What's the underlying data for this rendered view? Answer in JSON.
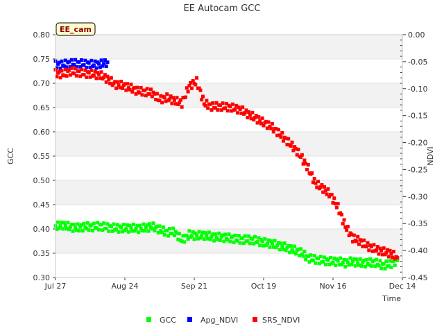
{
  "chart_data": {
    "type": "scatter",
    "title": "EE Autocam GCC",
    "badge": "EE_cam",
    "xlabel": "Time",
    "ylabel_left": "GCC",
    "ylabel_right": "NDVI",
    "x_range": [
      "2023-07-27",
      "2023-12-14"
    ],
    "ylim_left": [
      0.3,
      0.8
    ],
    "ylim_right": [
      -0.45,
      0.0
    ],
    "x_ticks": [
      {
        "date": "2023-07-27",
        "label": "Jul 27"
      },
      {
        "date": "2023-08-24",
        "label": "Aug 24"
      },
      {
        "date": "2023-09-21",
        "label": "Sep 21"
      },
      {
        "date": "2023-10-19",
        "label": "Oct 19"
      },
      {
        "date": "2023-11-16",
        "label": "Nov 16"
      },
      {
        "date": "2023-12-14",
        "label": "Dec 14"
      }
    ],
    "y_ticks_left": [
      "0.30",
      "0.35",
      "0.40",
      "0.45",
      "0.50",
      "0.55",
      "0.60",
      "0.65",
      "0.70",
      "0.75",
      "0.80"
    ],
    "y_ticks_right": [
      "-0.45",
      "-0.40",
      "-0.35",
      "-0.30",
      "-0.25",
      "-0.20",
      "-0.15",
      "-0.10",
      "-0.05",
      "0.00"
    ],
    "grid": "horizontal bands",
    "legend_position": "bottom",
    "series": [
      {
        "name": "GCC",
        "color": "#00ff00",
        "axis": "left",
        "points": [
          [
            "2023-07-27",
            0.405
          ],
          [
            "2023-07-30",
            0.408
          ],
          [
            "2023-08-02",
            0.404
          ],
          [
            "2023-08-05",
            0.402
          ],
          [
            "2023-08-08",
            0.405
          ],
          [
            "2023-08-11",
            0.404
          ],
          [
            "2023-08-14",
            0.406
          ],
          [
            "2023-08-17",
            0.403
          ],
          [
            "2023-08-20",
            0.402
          ],
          [
            "2023-08-23",
            0.401
          ],
          [
            "2023-08-26",
            0.402
          ],
          [
            "2023-08-29",
            0.401
          ],
          [
            "2023-09-01",
            0.402
          ],
          [
            "2023-09-04",
            0.405
          ],
          [
            "2023-09-07",
            0.399
          ],
          [
            "2023-09-10",
            0.393
          ],
          [
            "2023-09-13",
            0.394
          ],
          [
            "2023-09-16",
            0.377
          ],
          [
            "2023-09-19",
            0.388
          ],
          [
            "2023-09-22",
            0.386
          ],
          [
            "2023-09-25",
            0.387
          ],
          [
            "2023-09-28",
            0.384
          ],
          [
            "2023-10-01",
            0.383
          ],
          [
            "2023-10-04",
            0.382
          ],
          [
            "2023-10-07",
            0.38
          ],
          [
            "2023-10-10",
            0.378
          ],
          [
            "2023-10-13",
            0.378
          ],
          [
            "2023-10-16",
            0.376
          ],
          [
            "2023-10-19",
            0.372
          ],
          [
            "2023-10-22",
            0.37
          ],
          [
            "2023-10-25",
            0.366
          ],
          [
            "2023-10-28",
            0.362
          ],
          [
            "2023-10-31",
            0.357
          ],
          [
            "2023-11-03",
            0.352
          ],
          [
            "2023-11-06",
            0.34
          ],
          [
            "2023-11-09",
            0.337
          ],
          [
            "2023-11-12",
            0.335
          ],
          [
            "2023-11-15",
            0.333
          ],
          [
            "2023-11-18",
            0.333
          ],
          [
            "2023-11-21",
            0.33
          ],
          [
            "2023-11-24",
            0.333
          ],
          [
            "2023-11-27",
            0.33
          ],
          [
            "2023-11-30",
            0.33
          ],
          [
            "2023-12-03",
            0.331
          ],
          [
            "2023-12-06",
            0.325
          ],
          [
            "2023-12-09",
            0.327
          ],
          [
            "2023-12-12",
            0.335
          ]
        ]
      },
      {
        "name": "Apg_NDVI",
        "color": "#0000ff",
        "axis": "right",
        "points": [
          [
            "2023-07-27",
            -0.056
          ],
          [
            "2023-07-30",
            -0.055
          ],
          [
            "2023-08-02",
            -0.053
          ],
          [
            "2023-08-05",
            -0.053
          ],
          [
            "2023-08-08",
            -0.054
          ],
          [
            "2023-08-11",
            -0.055
          ],
          [
            "2023-08-14",
            -0.055
          ],
          [
            "2023-08-17",
            -0.051
          ]
        ]
      },
      {
        "name": "SRS_NDVI",
        "color": "#ff0000",
        "axis": "right",
        "points": [
          [
            "2023-07-27",
            -0.072
          ],
          [
            "2023-07-30",
            -0.073
          ],
          [
            "2023-08-02",
            -0.068
          ],
          [
            "2023-08-05",
            -0.07
          ],
          [
            "2023-08-08",
            -0.072
          ],
          [
            "2023-08-11",
            -0.073
          ],
          [
            "2023-08-14",
            -0.075
          ],
          [
            "2023-08-17",
            -0.082
          ],
          [
            "2023-08-20",
            -0.092
          ],
          [
            "2023-08-23",
            -0.094
          ],
          [
            "2023-08-26",
            -0.098
          ],
          [
            "2023-08-29",
            -0.104
          ],
          [
            "2023-09-01",
            -0.106
          ],
          [
            "2023-09-04",
            -0.108
          ],
          [
            "2023-09-07",
            -0.12
          ],
          [
            "2023-09-10",
            -0.117
          ],
          [
            "2023-09-13",
            -0.122
          ],
          [
            "2023-09-16",
            -0.127
          ],
          [
            "2023-09-19",
            -0.095
          ],
          [
            "2023-09-22",
            -0.087
          ],
          [
            "2023-09-25",
            -0.127
          ],
          [
            "2023-09-28",
            -0.133
          ],
          [
            "2023-10-01",
            -0.133
          ],
          [
            "2023-10-04",
            -0.134
          ],
          [
            "2023-10-07",
            -0.136
          ],
          [
            "2023-10-10",
            -0.14
          ],
          [
            "2023-10-13",
            -0.148
          ],
          [
            "2023-10-16",
            -0.155
          ],
          [
            "2023-10-19",
            -0.163
          ],
          [
            "2023-10-22",
            -0.17
          ],
          [
            "2023-10-25",
            -0.182
          ],
          [
            "2023-10-28",
            -0.195
          ],
          [
            "2023-10-31",
            -0.208
          ],
          [
            "2023-11-03",
            -0.225
          ],
          [
            "2023-11-06",
            -0.248
          ],
          [
            "2023-11-09",
            -0.276
          ],
          [
            "2023-11-12",
            -0.285
          ],
          [
            "2023-11-15",
            -0.297
          ],
          [
            "2023-11-18",
            -0.32
          ],
          [
            "2023-11-21",
            -0.355
          ],
          [
            "2023-11-24",
            -0.377
          ],
          [
            "2023-11-27",
            -0.383
          ],
          [
            "2023-11-30",
            -0.392
          ],
          [
            "2023-12-03",
            -0.397
          ],
          [
            "2023-12-06",
            -0.402
          ],
          [
            "2023-12-09",
            -0.405
          ],
          [
            "2023-12-12",
            -0.413
          ]
        ]
      }
    ]
  }
}
